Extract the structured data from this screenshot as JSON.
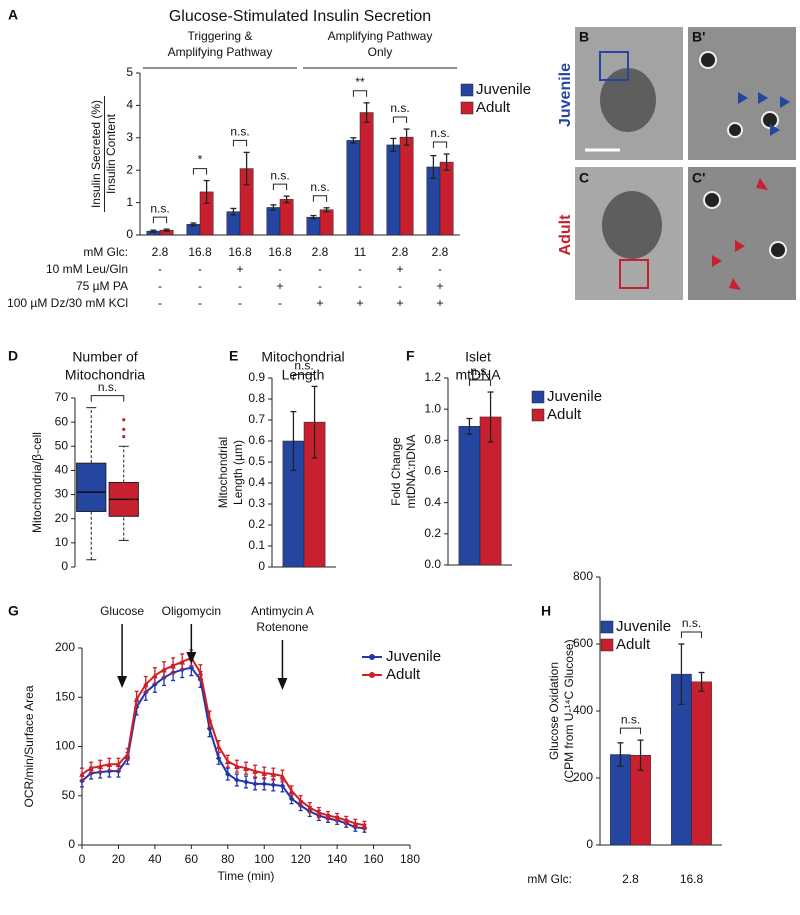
{
  "micrographs": {
    "panels": [
      "B",
      "B'",
      "C",
      "C'"
    ],
    "rows": [
      "Juvenile",
      "Adult"
    ]
  },
  "chart_data": [
    {
      "panel": "A",
      "type": "bar",
      "title": "Glucose-Stimulated Insulin Secretion",
      "group_labels": [
        [
          "Triggering &",
          "Amplifying Pathway"
        ],
        [
          "Amplifying Pathway",
          "Only"
        ]
      ],
      "ylabel": [
        "Insulin Secreted (%)",
        "Insulin Content"
      ],
      "ylim": [
        0,
        5
      ],
      "yticks": [
        0,
        1,
        2,
        3,
        4,
        5
      ],
      "x_row_label": "mM Glc:",
      "categories": [
        "2.8",
        "16.8",
        "16.8",
        "16.8",
        "2.8",
        "11",
        "2.8",
        "2.8"
      ],
      "conditions": [
        {
          "label": "10 mM Leu/Gln",
          "values": [
            "-",
            "-",
            "+",
            "-",
            "-",
            "-",
            "+",
            "-"
          ]
        },
        {
          "label": "75 µM PA",
          "values": [
            "-",
            "-",
            "-",
            "+",
            "-",
            "-",
            "-",
            "+"
          ]
        },
        {
          "label": "100 µM Dz/30 mM KCl",
          "values": [
            "-",
            "-",
            "-",
            "-",
            "+",
            "+",
            "+",
            "+"
          ]
        }
      ],
      "series": [
        {
          "name": "Juvenile",
          "color": "#2446a0",
          "values": [
            0.12,
            0.33,
            0.72,
            0.85,
            0.55,
            2.92,
            2.78,
            2.1
          ],
          "errors": [
            0.03,
            0.04,
            0.1,
            0.08,
            0.05,
            0.08,
            0.2,
            0.35
          ]
        },
        {
          "name": "Adult",
          "color": "#c8202e",
          "values": [
            0.15,
            1.33,
            2.05,
            1.1,
            0.78,
            3.78,
            3.02,
            2.25
          ],
          "errors": [
            0.03,
            0.35,
            0.5,
            0.1,
            0.06,
            0.3,
            0.25,
            0.25
          ]
        }
      ],
      "significance": [
        "n.s.",
        "*",
        "n.s.",
        "n.s.",
        "n.s.",
        "**",
        "n.s.",
        "n.s."
      ]
    },
    {
      "panel": "D",
      "type": "box",
      "title": [
        "Number of",
        "Mitochondria"
      ],
      "ylabel": "Mitochondria/β-cell",
      "ylim": [
        0,
        70
      ],
      "yticks": [
        0,
        10,
        20,
        30,
        40,
        50,
        60,
        70
      ],
      "series": [
        {
          "color": "#2446a0",
          "whislo": 3,
          "q1": 23,
          "med": 31,
          "q3": 43,
          "whishi": 66,
          "fliers": []
        },
        {
          "color": "#c8202e",
          "whislo": 11,
          "q1": 21,
          "med": 28,
          "q3": 35,
          "whishi": 50,
          "fliers": [
            54,
            57,
            61
          ]
        }
      ],
      "significance": [
        "n.s."
      ]
    },
    {
      "panel": "E",
      "type": "bar",
      "title": [
        "Mitochondrial",
        "Length"
      ],
      "ylabel": [
        "Mitochondrial",
        "Length (µm)"
      ],
      "ylim": [
        0,
        0.9
      ],
      "yticks": [
        0,
        0.1,
        0.2,
        0.3,
        0.4,
        0.5,
        0.6,
        0.7,
        0.8,
        0.9
      ],
      "series": [
        {
          "color": "#2446a0",
          "values": [
            0.6
          ],
          "errors": [
            0.14
          ]
        },
        {
          "color": "#c8202e",
          "values": [
            0.69
          ],
          "errors": [
            0.17
          ]
        }
      ],
      "significance": [
        "n.s."
      ]
    },
    {
      "panel": "F",
      "type": "bar",
      "title": [
        "Islet",
        "mtDNA"
      ],
      "ylabel": [
        "Fold Change",
        "mtDNA:nDNA"
      ],
      "ylim": [
        0,
        1.2
      ],
      "yticks": [
        {
          "value": 0,
          "label": "0.0"
        },
        0.2,
        0.4,
        0.6,
        0.8,
        {
          "value": 1,
          "label": "1.0"
        },
        1.2
      ],
      "series": [
        {
          "name": "Juvenile",
          "color": "#2446a0",
          "values": [
            0.89
          ],
          "errors": [
            0.05
          ]
        },
        {
          "name": "Adult",
          "color": "#c8202e",
          "values": [
            0.95
          ],
          "errors": [
            0.16
          ]
        }
      ],
      "significance": [
        "n.s."
      ]
    },
    {
      "panel": "G",
      "type": "line",
      "xlabel": "Time (min)",
      "ylabel": "OCR/min/Surface Area",
      "xlim": [
        0,
        180
      ],
      "xticks": [
        0,
        20,
        40,
        60,
        80,
        100,
        120,
        140,
        160,
        180
      ],
      "ylim": [
        0,
        200
      ],
      "yticks": [
        0,
        50,
        100,
        150,
        200
      ],
      "x": [
        0,
        5,
        10,
        15,
        20,
        25,
        30,
        35,
        40,
        45,
        50,
        55,
        60,
        65,
        70,
        75,
        80,
        85,
        90,
        95,
        100,
        105,
        110,
        115,
        120,
        125,
        130,
        135,
        140,
        145,
        150,
        155
      ],
      "annotations": [
        {
          "text": [
            "Glucose"
          ],
          "x": 22
        },
        {
          "text": [
            "Oligomycin"
          ],
          "x": 60
        },
        {
          "text": [
            "Antimycin A",
            "Rotenone"
          ],
          "x": 110
        }
      ],
      "series": [
        {
          "name": "Juvenile",
          "color": "#2035b0",
          "marker": "diamond",
          "values": [
            65,
            73,
            74,
            75,
            75,
            88,
            140,
            155,
            163,
            170,
            175,
            178,
            180,
            168,
            118,
            88,
            72,
            66,
            64,
            62,
            62,
            61,
            60,
            47,
            40,
            34,
            30,
            27,
            25,
            22,
            18,
            17
          ],
          "errors": [
            6,
            6,
            6,
            6,
            6,
            6,
            8,
            8,
            8,
            8,
            8,
            8,
            8,
            8,
            8,
            6,
            6,
            6,
            6,
            6,
            6,
            6,
            6,
            5,
            5,
            5,
            5,
            4,
            4,
            4,
            4,
            4
          ]
        },
        {
          "name": "Adult",
          "color": "#d01f25",
          "marker": "triangle",
          "values": [
            72,
            78,
            80,
            82,
            82,
            92,
            148,
            163,
            172,
            178,
            182,
            186,
            190,
            175,
            128,
            100,
            85,
            80,
            78,
            75,
            73,
            72,
            70,
            55,
            45,
            38,
            33,
            30,
            28,
            25,
            22,
            20
          ],
          "errors": [
            6,
            6,
            6,
            6,
            6,
            6,
            8,
            8,
            8,
            8,
            8,
            8,
            8,
            8,
            8,
            6,
            6,
            6,
            6,
            6,
            6,
            6,
            6,
            5,
            5,
            5,
            5,
            4,
            4,
            4,
            4,
            4
          ]
        }
      ]
    },
    {
      "panel": "H",
      "type": "bar",
      "ylabel": [
        "Glucose Oxidation",
        "(CPM from U-¹⁴C Glucose)"
      ],
      "ylim": [
        0,
        800
      ],
      "yticks": [
        0,
        200,
        400,
        600,
        800
      ],
      "x_row_label": "mM Glc:",
      "categories": [
        "2.8",
        "16.8"
      ],
      "series": [
        {
          "name": "Juvenile",
          "color": "#2446a0",
          "values": [
            270,
            510
          ],
          "errors": [
            35,
            90
          ]
        },
        {
          "name": "Adult",
          "color": "#c8202e",
          "values": [
            268,
            487
          ],
          "errors": [
            45,
            28
          ]
        }
      ],
      "significance": [
        "n.s.",
        "n.s."
      ]
    }
  ]
}
